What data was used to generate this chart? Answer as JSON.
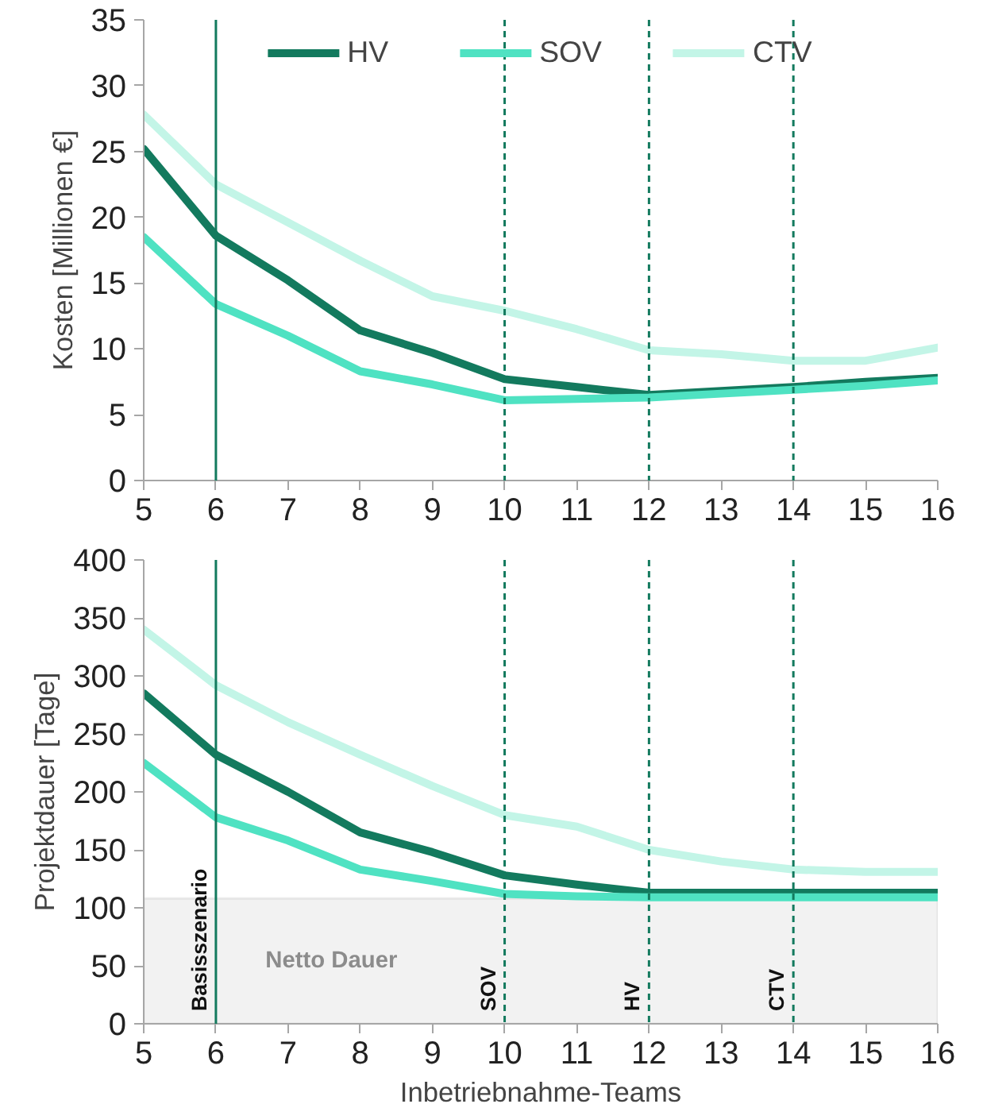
{
  "chart_data": [
    {
      "type": "line",
      "ylabel": "Kosten [Millionen €]",
      "x": [
        5,
        6,
        7,
        8,
        9,
        10,
        11,
        12,
        13,
        14,
        15,
        16
      ],
      "xlim": [
        5,
        16
      ],
      "xticks": [
        5,
        6,
        7,
        8,
        9,
        10,
        11,
        12,
        13,
        14,
        15,
        16
      ],
      "ylim": [
        0,
        35
      ],
      "yticks": [
        0,
        5,
        10,
        15,
        20,
        25,
        30,
        35
      ],
      "legend": "top",
      "series": [
        {
          "name": "HV",
          "color": "#137a5e",
          "values": [
            25.2,
            18.6,
            15.2,
            11.4,
            9.7,
            7.7,
            7.1,
            6.5,
            6.8,
            7.1,
            7.5,
            7.8
          ]
        },
        {
          "name": "SOV",
          "color": "#4fe2c2",
          "values": [
            18.5,
            13.4,
            11.0,
            8.3,
            7.3,
            6.1,
            6.2,
            6.3,
            6.6,
            6.9,
            7.2,
            7.6
          ]
        },
        {
          "name": "CTV",
          "color": "#c3f5e7",
          "values": [
            27.8,
            22.5,
            19.6,
            16.7,
            14.0,
            12.9,
            11.5,
            9.9,
            9.6,
            9.1,
            9.1,
            10.1
          ]
        }
      ],
      "ref_lines": [
        {
          "axis": "x",
          "value": 6,
          "line_style": "solid",
          "color": "#137a5e"
        },
        {
          "axis": "x",
          "value": 10,
          "line_style": "dashed",
          "color": "#137a5e"
        },
        {
          "axis": "x",
          "value": 12,
          "line_style": "dashed",
          "color": "#137a5e"
        },
        {
          "axis": "x",
          "value": 14,
          "line_style": "dashed",
          "color": "#137a5e"
        }
      ]
    },
    {
      "type": "line",
      "ylabel": "Projektdauer [Tage]",
      "xlabel": "Inbetriebnahme-Teams",
      "x": [
        5,
        6,
        7,
        8,
        9,
        10,
        11,
        12,
        13,
        14,
        15,
        16
      ],
      "xlim": [
        5,
        16
      ],
      "xticks": [
        5,
        6,
        7,
        8,
        9,
        10,
        11,
        12,
        13,
        14,
        15,
        16
      ],
      "ylim": [
        0,
        400
      ],
      "yticks": [
        0,
        50,
        100,
        150,
        200,
        250,
        300,
        350,
        400
      ],
      "series": [
        {
          "color": "#137a5e",
          "values": [
            285,
            232,
            200,
            165,
            148,
            128,
            120,
            113,
            113,
            113,
            113,
            113
          ]
        },
        {
          "color": "#4fe2c2",
          "values": [
            225,
            178,
            158,
            133,
            123,
            112,
            110,
            109,
            109,
            109,
            109,
            109
          ]
        },
        {
          "color": "#c3f5e7",
          "values": [
            340,
            292,
            260,
            232,
            205,
            180,
            170,
            150,
            140,
            133,
            131,
            131
          ]
        }
      ],
      "bands": [
        {
          "axis": "y",
          "from": 0,
          "to": 108,
          "label": "Netto Dauer",
          "color": "#f2f2f2"
        }
      ],
      "ref_lines": [
        {
          "axis": "x",
          "value": 6,
          "label": "Basisszenario",
          "line_style": "solid",
          "color": "#137a5e"
        },
        {
          "axis": "x",
          "value": 10,
          "label": "SOV",
          "line_style": "dashed",
          "color": "#137a5e"
        },
        {
          "axis": "x",
          "value": 12,
          "label": "HV",
          "line_style": "dashed",
          "color": "#137a5e"
        },
        {
          "axis": "x",
          "value": 14,
          "label": "CTV",
          "line_style": "dashed",
          "color": "#137a5e"
        }
      ]
    }
  ]
}
